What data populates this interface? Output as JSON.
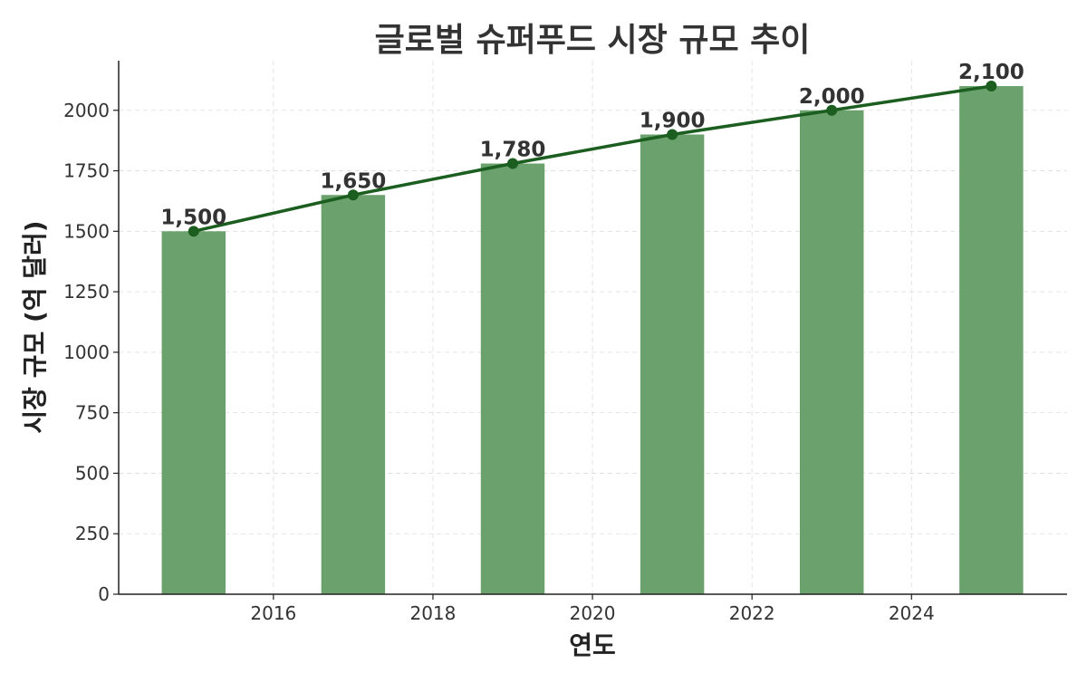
{
  "chart_data": {
    "type": "bar",
    "title": "글로벌 슈퍼푸드 시장 규모 추이",
    "xlabel": "연도",
    "ylabel": "시장 규모 (억 달러)",
    "x": [
      2015,
      2017,
      2019,
      2021,
      2023,
      2025
    ],
    "values": [
      1500,
      1650,
      1780,
      1900,
      2000,
      2100
    ],
    "data_labels": [
      "1,500",
      "1,650",
      "1,780",
      "1,900",
      "2,000",
      "2,100"
    ],
    "overlay": "line",
    "xlim": [
      2014.06,
      2025.95
    ],
    "ylim": [
      0,
      2205
    ],
    "xticks": [
      2016,
      2018,
      2020,
      2022,
      2024
    ],
    "yticks": [
      0,
      250,
      500,
      750,
      1000,
      1250,
      1500,
      1750,
      2000
    ],
    "grid": true,
    "bar_color": "#6aa16c",
    "line_color": "#1b5e20"
  }
}
